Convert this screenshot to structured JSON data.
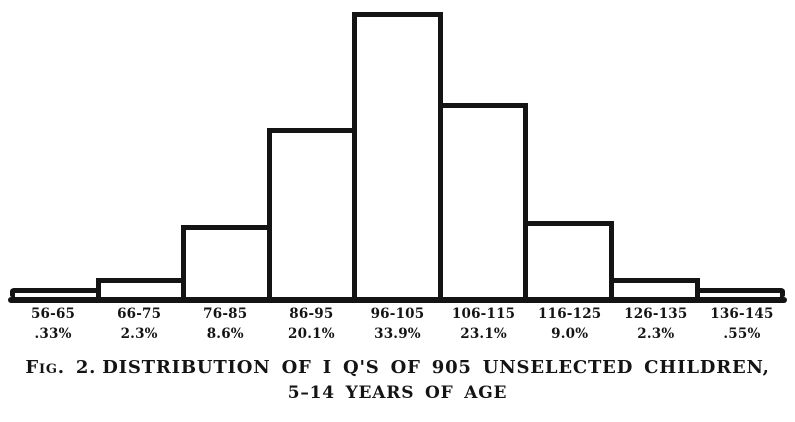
{
  "figure": {
    "ink_color": "#141414",
    "paper_color": "#ffffff",
    "caption": {
      "prefix": "Fig. 2.",
      "line1": "DISTRIBUTION OF I Q'S OF 905 UNSELECTED CHILDREN,",
      "line2": "5–14 YEARS OF AGE"
    }
  },
  "chart_data": {
    "type": "bar",
    "title": "Fig. 2. Distribution of I Q's of 905 unselected children, 5–14 years of age",
    "categories": [
      "56-65",
      "66-75",
      "76-85",
      "86-95",
      "96-105",
      "106-115",
      "116-125",
      "126-135",
      "136-145"
    ],
    "values": [
      0.33,
      2.3,
      8.6,
      20.1,
      33.9,
      23.1,
      9.0,
      2.3,
      0.55
    ],
    "value_labels": [
      ".33%",
      "2.3%",
      "8.6%",
      "20.1%",
      "33.9%",
      "23.1%",
      "9.0%",
      "2.3%",
      ".55%"
    ],
    "xlabel": "",
    "ylabel": "",
    "ylim": [
      0,
      34
    ],
    "grid": false,
    "legend_position": "none",
    "bar_fill": "#ffffff",
    "bar_outline": "#141414",
    "sample_size_shown_in_caption": "905"
  }
}
